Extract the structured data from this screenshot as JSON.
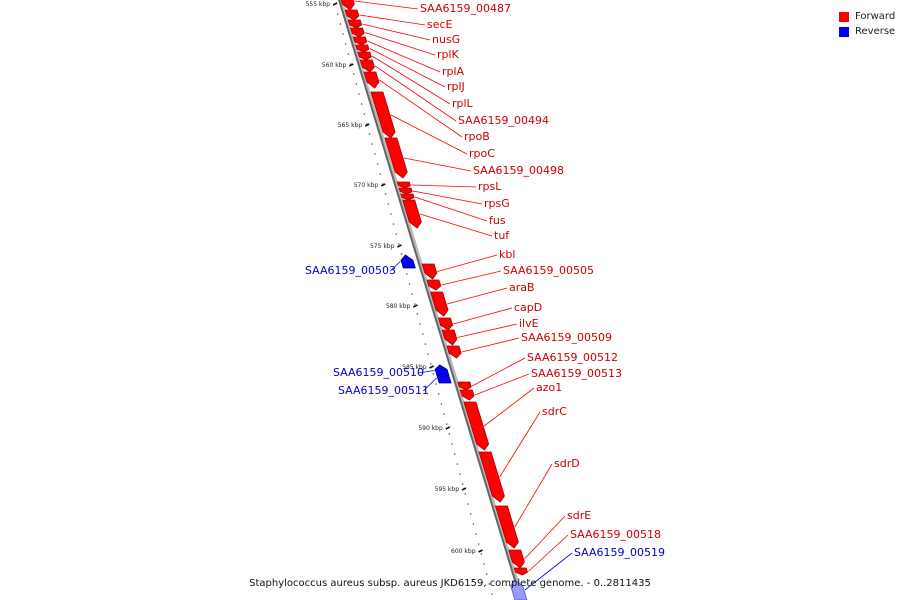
{
  "legend": {
    "items": [
      {
        "label": "Forward",
        "color": "#ff0000"
      },
      {
        "label": "Reverse",
        "color": "#0000ff"
      }
    ]
  },
  "scale_ticks": [
    "555 kbp",
    "560 kbp",
    "565 kbp",
    "570 kbp",
    "575 kbp",
    "580 kbp",
    "585 kbp",
    "590 kbp",
    "595 kbp",
    "600 kbp"
  ],
  "genes": [
    {
      "name": "SAA6159_00487",
      "strand": "forward"
    },
    {
      "name": "secE",
      "strand": "forward"
    },
    {
      "name": "nusG",
      "strand": "forward"
    },
    {
      "name": "rplK",
      "strand": "forward"
    },
    {
      "name": "rplA",
      "strand": "forward"
    },
    {
      "name": "rplJ",
      "strand": "forward"
    },
    {
      "name": "rplL",
      "strand": "forward"
    },
    {
      "name": "SAA6159_00494",
      "strand": "forward"
    },
    {
      "name": "rpoB",
      "strand": "forward"
    },
    {
      "name": "rpoC",
      "strand": "forward"
    },
    {
      "name": "SAA6159_00498",
      "strand": "forward"
    },
    {
      "name": "rpsL",
      "strand": "forward"
    },
    {
      "name": "rpsG",
      "strand": "forward"
    },
    {
      "name": "fus",
      "strand": "forward"
    },
    {
      "name": "tuf",
      "strand": "forward"
    },
    {
      "name": "SAA6159_00503",
      "strand": "reverse"
    },
    {
      "name": "kbl",
      "strand": "forward"
    },
    {
      "name": "SAA6159_00505",
      "strand": "forward"
    },
    {
      "name": "araB",
      "strand": "forward"
    },
    {
      "name": "capD",
      "strand": "forward"
    },
    {
      "name": "ilvE",
      "strand": "forward"
    },
    {
      "name": "SAA6159_00509",
      "strand": "forward"
    },
    {
      "name": "SAA6159_00510",
      "strand": "reverse"
    },
    {
      "name": "SAA6159_00511",
      "strand": "reverse"
    },
    {
      "name": "SAA6159_00512",
      "strand": "forward"
    },
    {
      "name": "SAA6159_00513",
      "strand": "forward"
    },
    {
      "name": "azo1",
      "strand": "forward"
    },
    {
      "name": "sdrC",
      "strand": "forward"
    },
    {
      "name": "sdrD",
      "strand": "forward"
    },
    {
      "name": "sdrE",
      "strand": "forward"
    },
    {
      "name": "SAA6159_00518",
      "strand": "forward"
    },
    {
      "name": "SAA6159_00519",
      "strand": "reverse"
    }
  ],
  "caption": "Staphylococcus aureus subsp. aureus JKD6159, complete genome. - 0..2811435"
}
